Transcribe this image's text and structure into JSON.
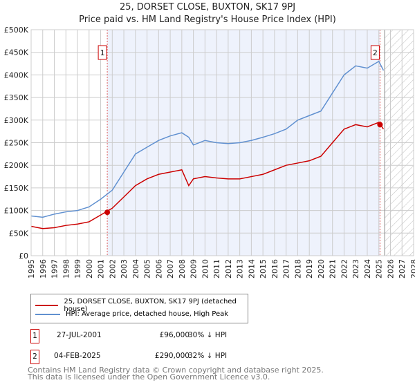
{
  "chart_data": {
    "type": "line",
    "title": "25, DORSET CLOSE, BUXTON, SK17 9PJ",
    "subtitle": "Price paid vs. HM Land Registry's House Price Index (HPI)",
    "xlim": [
      1995,
      2028
    ],
    "ylim": [
      0,
      500000
    ],
    "x_ticks": [
      "1995",
      "1996",
      "1997",
      "1998",
      "1999",
      "2000",
      "2001",
      "2002",
      "2003",
      "2004",
      "2005",
      "2006",
      "2007",
      "2008",
      "2009",
      "2010",
      "2011",
      "2012",
      "2013",
      "2014",
      "2015",
      "2016",
      "2017",
      "2018",
      "2019",
      "2020",
      "2021",
      "2022",
      "2023",
      "2024",
      "2025",
      "2026",
      "2027",
      "2028"
    ],
    "y_ticks": [
      "£0",
      "£50K",
      "£100K",
      "£150K",
      "£200K",
      "£250K",
      "£300K",
      "£350K",
      "£400K",
      "£450K",
      "£500K"
    ],
    "grid": true,
    "shaded_range": [
      2001.57,
      2025.1
    ],
    "hatched_from": 2025.5,
    "series": [
      {
        "name": "25, DORSET CLOSE, BUXTON, SK17 9PJ (detached house)",
        "color": "#cc0000",
        "x": [
          1995,
          1996,
          1997,
          1998,
          1999,
          2000,
          2001,
          2002,
          2003,
          2004,
          2005,
          2006,
          2007,
          2008,
          2008.6,
          2009,
          2010,
          2011,
          2012,
          2013,
          2014,
          2015,
          2016,
          2017,
          2018,
          2019,
          2020,
          2021,
          2022,
          2023,
          2024,
          2025,
          2025.4
        ],
        "y": [
          65000,
          60000,
          62000,
          67000,
          70000,
          75000,
          90000,
          105000,
          130000,
          155000,
          170000,
          180000,
          185000,
          190000,
          155000,
          170000,
          175000,
          172000,
          170000,
          170000,
          175000,
          180000,
          190000,
          200000,
          205000,
          210000,
          220000,
          250000,
          280000,
          290000,
          285000,
          295000,
          280000
        ]
      },
      {
        "name": "HPI: Average price, detached house, High Peak",
        "color": "#6090d0",
        "x": [
          1995,
          1996,
          1997,
          1998,
          1999,
          2000,
          2001,
          2002,
          2003,
          2004,
          2005,
          2006,
          2007,
          2008,
          2008.6,
          2009,
          2010,
          2011,
          2012,
          2013,
          2014,
          2015,
          2016,
          2017,
          2018,
          2019,
          2020,
          2021,
          2022,
          2023,
          2024,
          2025,
          2025.4
        ],
        "y": [
          88000,
          85000,
          92000,
          97000,
          100000,
          108000,
          125000,
          145000,
          185000,
          225000,
          240000,
          255000,
          265000,
          272000,
          262000,
          245000,
          255000,
          250000,
          248000,
          250000,
          255000,
          262000,
          270000,
          280000,
          300000,
          310000,
          320000,
          360000,
          400000,
          420000,
          415000,
          430000,
          410000
        ]
      }
    ],
    "sales": [
      {
        "label": "1",
        "x": 2001.57,
        "y": 96000
      },
      {
        "label": "2",
        "x": 2025.1,
        "y": 290000
      }
    ]
  },
  "table": [
    {
      "num": "1",
      "date": "27-JUL-2001",
      "price": "£96,000",
      "hpi": "30% ↓ HPI"
    },
    {
      "num": "2",
      "date": "04-FEB-2025",
      "price": "£290,000",
      "hpi": "32% ↓ HPI"
    }
  ],
  "footer": [
    "Contains HM Land Registry data © Crown copyright and database right 2025.",
    "This data is licensed under the Open Government Licence v3.0."
  ]
}
